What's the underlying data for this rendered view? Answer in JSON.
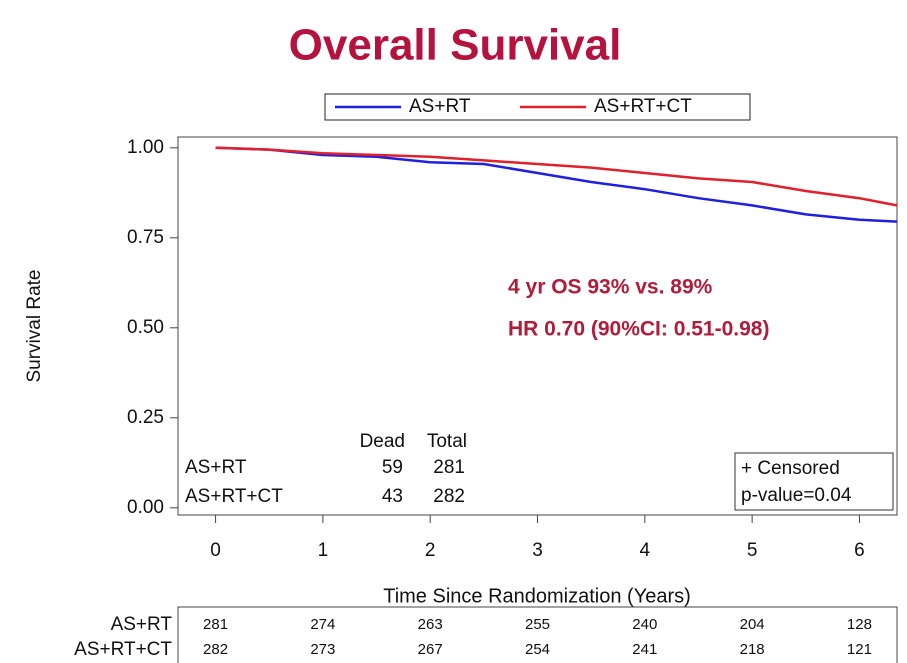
{
  "chart_data": {
    "type": "line",
    "title": "Overall Survival",
    "x_label": "Time Since Randomization (Years)",
    "y_label": "Survival Rate",
    "xlim": [
      -0.35,
      6.35
    ],
    "xticks": [
      0,
      1,
      2,
      3,
      4,
      5,
      6
    ],
    "ylim": [
      -0.02,
      1.03
    ],
    "yticks": [
      {
        "value": 0,
        "label": "0.00"
      },
      {
        "value": 0.25,
        "label": "0.25"
      },
      {
        "value": 0.5,
        "label": "0.50"
      },
      {
        "value": 0.75,
        "label": "0.75"
      },
      {
        "value": 1,
        "label": "1.00"
      }
    ],
    "legend": "top",
    "series": [
      {
        "name": "AS+RT",
        "color": "#1f1fe0",
        "x": [
          0,
          0.5,
          1,
          1.5,
          2,
          2.5,
          3,
          3.5,
          4,
          4.5,
          5,
          5.5,
          6,
          6.35
        ],
        "values": [
          1.0,
          0.995,
          0.98,
          0.975,
          0.96,
          0.955,
          0.93,
          0.905,
          0.885,
          0.86,
          0.84,
          0.815,
          0.8,
          0.795
        ]
      },
      {
        "name": "AS+RT+CT",
        "color": "#e0202a",
        "x": [
          0,
          0.5,
          1,
          1.5,
          2,
          2.5,
          3,
          3.5,
          4,
          4.5,
          5,
          5.5,
          6,
          6.35
        ],
        "values": [
          1.0,
          0.995,
          0.985,
          0.98,
          0.975,
          0.965,
          0.955,
          0.945,
          0.93,
          0.915,
          0.905,
          0.88,
          0.86,
          0.84
        ]
      }
    ],
    "annotations": [
      "4 yr OS  93% vs. 89%",
      "HR 0.70 (90%CI: 0.51-0.98)"
    ],
    "inset_table": {
      "columns": [
        "Dead",
        "Total"
      ],
      "rows": [
        {
          "name": "AS+RT",
          "values": [
            59,
            281
          ]
        },
        {
          "name": "AS+RT+CT",
          "values": [
            43,
            282
          ]
        }
      ]
    },
    "censor_label": "+ Censored",
    "p_value_label": "p-value=0.04",
    "risk_table": {
      "rows": [
        {
          "name": "AS+RT",
          "values": [
            281,
            274,
            263,
            255,
            240,
            204,
            128
          ]
        },
        {
          "name": "AS+RT+CT",
          "values": [
            282,
            273,
            267,
            254,
            241,
            218,
            121
          ]
        }
      ]
    }
  }
}
